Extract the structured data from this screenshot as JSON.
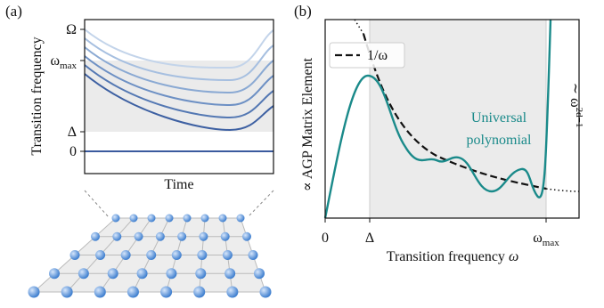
{
  "panel_a": {
    "label": "(a)",
    "y_axis_label": "Transition frequency",
    "x_axis_label": "Time",
    "y_ticks": [
      "Ω",
      {
        "base": "ω",
        "sub": "max"
      },
      "Δ",
      "0"
    ]
  },
  "panel_b": {
    "label": "(b)",
    "y_axis_label": "∝ AGP Matrix Element",
    "x_axis_label": {
      "text": "Transition frequency ",
      "symbol": "ω"
    },
    "x_ticks": [
      "0",
      "Δ",
      {
        "base": "ω",
        "sub": "max"
      }
    ],
    "legend": "1/ω",
    "annotation": [
      "Universal",
      "polynomial"
    ],
    "scaling": {
      "prefix": "∼ ω",
      "sup": "2d−1"
    }
  }
}
